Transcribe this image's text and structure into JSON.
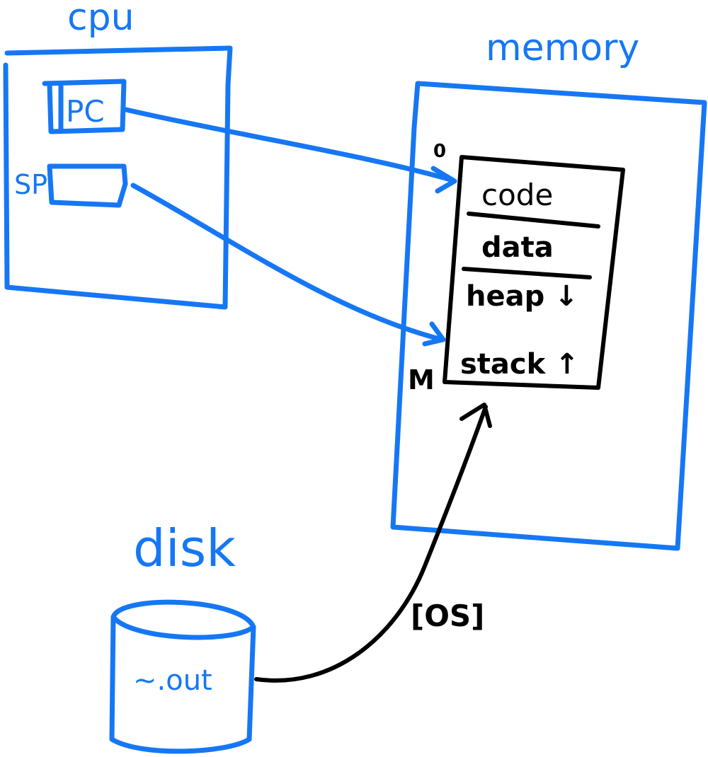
{
  "colors": {
    "blue": "#1677f5",
    "black": "#000000",
    "background": "#ffffff"
  },
  "cpu": {
    "title": "cpu",
    "pc_label": "PC",
    "sp_label": "SP"
  },
  "memory": {
    "title": "memory",
    "addr_start": "0",
    "addr_end": "M",
    "segments": [
      "code",
      "data",
      "heap ↓",
      "stack ↑"
    ]
  },
  "disk": {
    "title": "disk",
    "file_label": "~.out"
  },
  "loader_label": "[OS]"
}
